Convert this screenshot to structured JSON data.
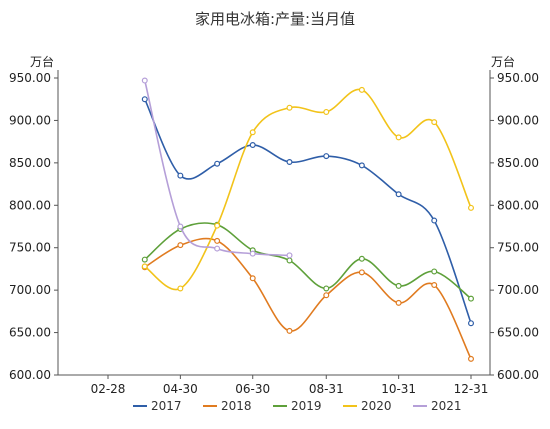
{
  "chart_data": {
    "type": "line",
    "title": "家用电冰箱:产量:当月值",
    "y_unit_left": "万台",
    "y_unit_right": "万台",
    "ylim": [
      600,
      950
    ],
    "yticks": [
      "600.00",
      "650.00",
      "700.00",
      "750.00",
      "800.00",
      "850.00",
      "900.00",
      "950.00"
    ],
    "xticks": [
      "02-28",
      "04-30",
      "06-30",
      "08-31",
      "10-31",
      "12-31"
    ],
    "x": [
      "03-31",
      "04-30",
      "05-31",
      "06-30",
      "07-31",
      "08-31",
      "09-30",
      "10-31",
      "11-30",
      "12-31"
    ],
    "legend_position": "bottom",
    "grid": false,
    "series": [
      {
        "name": "2017",
        "color": "#2f5ea8",
        "values": [
          925,
          835,
          849,
          871,
          851,
          858,
          847,
          813,
          782,
          661
        ]
      },
      {
        "name": "2018",
        "color": "#e07b20",
        "values": [
          727,
          753,
          758,
          714,
          652,
          694,
          721,
          685,
          706,
          619
        ]
      },
      {
        "name": "2019",
        "color": "#5ea03a",
        "values": [
          736,
          772,
          777,
          747,
          735,
          702,
          737,
          705,
          722,
          690
        ]
      },
      {
        "name": "2020",
        "color": "#f2c31a",
        "values": [
          728,
          702,
          776,
          886,
          915,
          910,
          936,
          880,
          898,
          797
        ]
      },
      {
        "name": "2021",
        "color": "#b59fd8",
        "values": [
          947,
          775,
          749,
          743,
          741,
          null,
          null,
          null,
          null,
          null
        ]
      }
    ]
  }
}
